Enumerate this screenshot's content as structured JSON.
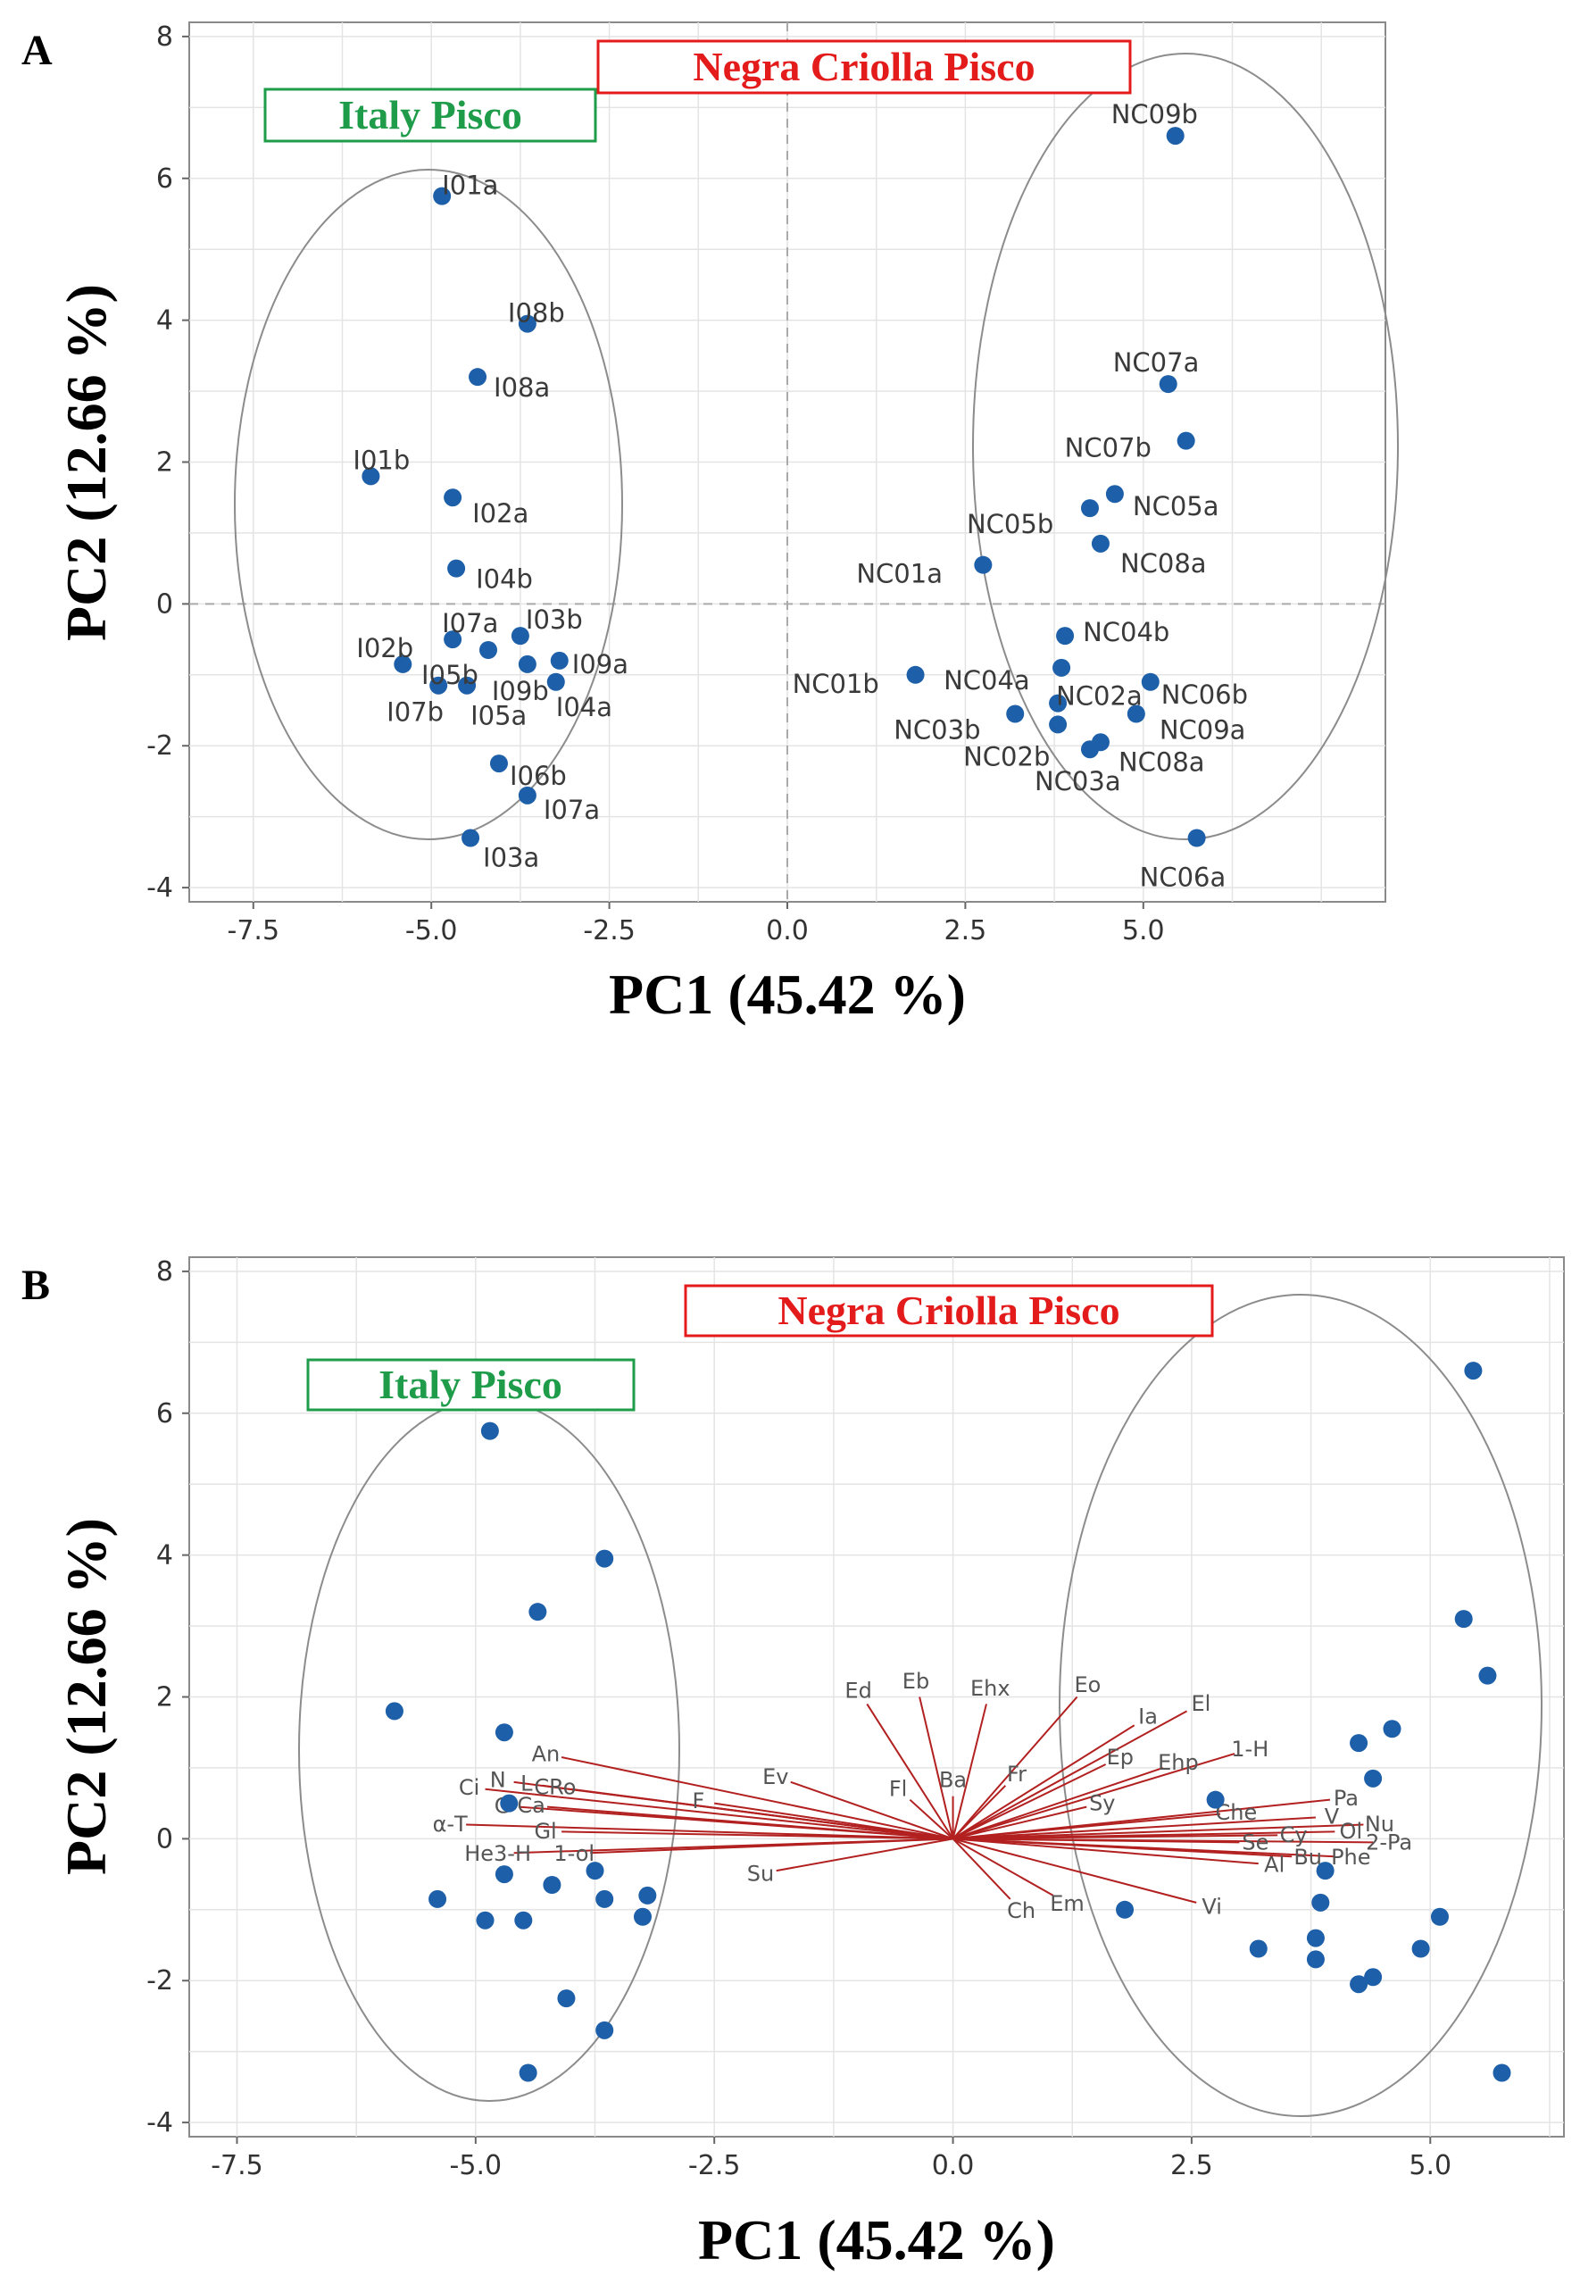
{
  "colors": {
    "point": "#1d5fa8",
    "loading": "#b22020",
    "italy": "#1e9c4a",
    "negra": "#e31b1b",
    "grid": "#e4e4e4",
    "ellipse": "#8c8c8c"
  },
  "chart_data": [
    {
      "panel": "A",
      "type": "scatter",
      "xlabel": "PC1 (45.42 %)",
      "ylabel": "PC2 (12.66 %)",
      "xlim": [
        -8.4,
        8.4
      ],
      "ylim": [
        -4.2,
        8.2
      ],
      "xticks": [
        -7.5,
        -5.0,
        -2.5,
        0.0,
        2.5,
        5.0
      ],
      "yticks": [
        -4,
        -2,
        0,
        2,
        4,
        6,
        8
      ],
      "xtick_labels": [
        "-7.5",
        "-5.0",
        "-2.5",
        "0.0",
        "2.5",
        "5.0"
      ],
      "ytick_labels": [
        "-4",
        "-2",
        "0",
        "2",
        "4",
        "6",
        "8"
      ],
      "groups": [
        {
          "label": "Italy Pisco",
          "color": "italy"
        },
        {
          "label": "Negra Criolla Pisco",
          "color": "negra"
        }
      ],
      "points": [
        {
          "label": "I01a",
          "x": -4.85,
          "y": 5.75
        },
        {
          "label": "I08b",
          "x": -3.65,
          "y": 3.95
        },
        {
          "label": "I08a",
          "x": -4.35,
          "y": 3.2
        },
        {
          "label": "I01b",
          "x": -5.85,
          "y": 1.8
        },
        {
          "label": "I02a",
          "x": -4.7,
          "y": 1.5
        },
        {
          "label": "I04b",
          "x": -4.65,
          "y": 0.5
        },
        {
          "label": "I02b",
          "x": -5.4,
          "y": -0.85
        },
        {
          "label": "I07a",
          "x": -4.7,
          "y": -0.5
        },
        {
          "label": "I03b",
          "x": -3.75,
          "y": -0.45
        },
        {
          "label": "I05b",
          "x": -4.2,
          "y": -0.65
        },
        {
          "label": "I09a",
          "x": -3.2,
          "y": -0.8
        },
        {
          "label": "I09b",
          "x": -3.65,
          "y": -0.85
        },
        {
          "label": "I07b",
          "x": -4.9,
          "y": -1.15
        },
        {
          "label": "I05a",
          "x": -4.5,
          "y": -1.15
        },
        {
          "label": "I04a",
          "x": -3.25,
          "y": -1.1
        },
        {
          "label": "I06b",
          "x": -4.05,
          "y": -2.25
        },
        {
          "label": "I07a",
          "x": -3.65,
          "y": -2.7
        },
        {
          "label": "I03a",
          "x": -4.45,
          "y": -3.3
        },
        {
          "label": "NC09b",
          "x": 5.45,
          "y": 6.6
        },
        {
          "label": "NC07a",
          "x": 5.35,
          "y": 3.1
        },
        {
          "label": "NC07b",
          "x": 5.6,
          "y": 2.3
        },
        {
          "label": "NC05a",
          "x": 4.6,
          "y": 1.55
        },
        {
          "label": "NC05b",
          "x": 4.25,
          "y": 1.35
        },
        {
          "label": "NC08a",
          "x": 4.4,
          "y": 0.85
        },
        {
          "label": "NC01a",
          "x": 2.75,
          "y": 0.55
        },
        {
          "label": "NC04b",
          "x": 3.9,
          "y": -0.45
        },
        {
          "label": "NC01b",
          "x": 1.8,
          "y": -1.0
        },
        {
          "label": "NC04a",
          "x": 3.85,
          "y": -0.9
        },
        {
          "label": "NC02a",
          "x": 3.8,
          "y": -1.4
        },
        {
          "label": "NC06b",
          "x": 5.1,
          "y": -1.1
        },
        {
          "label": "NC03b",
          "x": 3.2,
          "y": -1.55
        },
        {
          "label": "NC02b",
          "x": 3.8,
          "y": -1.7
        },
        {
          "label": "NC09a",
          "x": 4.9,
          "y": -1.55
        },
        {
          "label": "NC08a",
          "x": 4.4,
          "y": -1.95
        },
        {
          "label": "NC03a",
          "x": 4.25,
          "y": -2.05
        },
        {
          "label": "NC06a",
          "x": 5.75,
          "y": -3.3
        }
      ]
    },
    {
      "panel": "B",
      "type": "scatter",
      "subtype": "biplot",
      "xlabel": "PC1 (45.42 %)",
      "ylabel": "PC2 (12.66 %)",
      "xlim": [
        -8.0,
        6.4
      ],
      "ylim": [
        -4.2,
        8.2
      ],
      "xticks": [
        -7.5,
        -5.0,
        -2.5,
        0.0,
        2.5,
        5.0
      ],
      "yticks": [
        -4,
        -2,
        0,
        2,
        4,
        6,
        8
      ],
      "xtick_labels": [
        "-7.5",
        "-5.0",
        "-2.5",
        "0.0",
        "2.5",
        "5.0"
      ],
      "ytick_labels": [
        "-4",
        "-2",
        "0",
        "2",
        "4",
        "6",
        "8"
      ],
      "groups": [
        {
          "label": "Italy Pisco",
          "color": "italy"
        },
        {
          "label": "Negra Criolla Pisco",
          "color": "negra"
        }
      ],
      "points": [
        {
          "x": -4.85,
          "y": 5.75
        },
        {
          "x": -3.65,
          "y": 3.95
        },
        {
          "x": -4.35,
          "y": 3.2
        },
        {
          "x": -5.85,
          "y": 1.8
        },
        {
          "x": -4.7,
          "y": 1.5
        },
        {
          "x": -4.65,
          "y": 0.5
        },
        {
          "x": -5.4,
          "y": -0.85
        },
        {
          "x": -4.7,
          "y": -0.5
        },
        {
          "x": -3.75,
          "y": -0.45
        },
        {
          "x": -4.2,
          "y": -0.65
        },
        {
          "x": -3.2,
          "y": -0.8
        },
        {
          "x": -3.65,
          "y": -0.85
        },
        {
          "x": -4.9,
          "y": -1.15
        },
        {
          "x": -4.5,
          "y": -1.15
        },
        {
          "x": -3.25,
          "y": -1.1
        },
        {
          "x": -4.05,
          "y": -2.25
        },
        {
          "x": -3.65,
          "y": -2.7
        },
        {
          "x": -4.45,
          "y": -3.3
        },
        {
          "x": 5.45,
          "y": 6.6
        },
        {
          "x": 5.35,
          "y": 3.1
        },
        {
          "x": 5.6,
          "y": 2.3
        },
        {
          "x": 4.6,
          "y": 1.55
        },
        {
          "x": 4.25,
          "y": 1.35
        },
        {
          "x": 4.4,
          "y": 0.85
        },
        {
          "x": 2.75,
          "y": 0.55
        },
        {
          "x": 3.9,
          "y": -0.45
        },
        {
          "x": 1.8,
          "y": -1.0
        },
        {
          "x": 3.85,
          "y": -0.9
        },
        {
          "x": 3.8,
          "y": -1.4
        },
        {
          "x": 5.1,
          "y": -1.1
        },
        {
          "x": 3.2,
          "y": -1.55
        },
        {
          "x": 3.8,
          "y": -1.7
        },
        {
          "x": 4.9,
          "y": -1.55
        },
        {
          "x": 4.4,
          "y": -1.95
        },
        {
          "x": 4.25,
          "y": -2.05
        },
        {
          "x": 5.75,
          "y": -3.3
        }
      ],
      "loadings": [
        {
          "label": "Ed",
          "x": -0.9,
          "y": 1.9
        },
        {
          "label": "Eb",
          "x": -0.35,
          "y": 2.0
        },
        {
          "label": "Ehx",
          "x": 0.35,
          "y": 1.9
        },
        {
          "label": "Eo",
          "x": 1.3,
          "y": 2.0
        },
        {
          "label": "Ia",
          "x": 1.9,
          "y": 1.6
        },
        {
          "label": "El",
          "x": 2.45,
          "y": 1.8
        },
        {
          "label": "1-H",
          "x": 2.95,
          "y": 1.2
        },
        {
          "label": "Ep",
          "x": 1.6,
          "y": 1.05
        },
        {
          "label": "Ehp",
          "x": 2.2,
          "y": 1.0
        },
        {
          "label": "Fr",
          "x": 0.55,
          "y": 0.75
        },
        {
          "label": "Sy",
          "x": 1.4,
          "y": 0.45
        },
        {
          "label": "Ba",
          "x": 0.0,
          "y": 0.6
        },
        {
          "label": "Fl",
          "x": -0.45,
          "y": 0.55
        },
        {
          "label": "Ev",
          "x": -1.7,
          "y": 0.8
        },
        {
          "label": "F",
          "x": -2.5,
          "y": 0.5
        },
        {
          "label": "Su",
          "x": -1.85,
          "y": -0.45
        },
        {
          "label": "Ch",
          "x": 0.6,
          "y": -0.85
        },
        {
          "label": "Em",
          "x": 1.05,
          "y": -0.8
        },
        {
          "label": "Vi",
          "x": 2.55,
          "y": -0.9
        },
        {
          "label": "Pa",
          "x": 3.95,
          "y": 0.55
        },
        {
          "label": "Che",
          "x": 2.8,
          "y": 0.35
        },
        {
          "label": "V",
          "x": 3.8,
          "y": 0.3
        },
        {
          "label": "Nu",
          "x": 4.3,
          "y": 0.2
        },
        {
          "label": "Ol",
          "x": 4.0,
          "y": 0.1
        },
        {
          "label": "Cy",
          "x": 3.4,
          "y": 0.05
        },
        {
          "label": "2-Pa",
          "x": 4.4,
          "y": -0.05
        },
        {
          "label": "Se",
          "x": 3.0,
          "y": -0.05
        },
        {
          "label": "Bu",
          "x": 3.55,
          "y": -0.25
        },
        {
          "label": "Phe",
          "x": 4.0,
          "y": -0.25
        },
        {
          "label": "Al",
          "x": 3.2,
          "y": -0.35
        },
        {
          "label": "An",
          "x": -4.1,
          "y": 1.15
        },
        {
          "label": "L",
          "x": -4.3,
          "y": 0.75
        },
        {
          "label": "CRo",
          "x": -4.0,
          "y": 0.7
        },
        {
          "label": "Ci",
          "x": -4.9,
          "y": 0.7
        },
        {
          "label": "N",
          "x": -4.6,
          "y": 0.8
        },
        {
          "label": "G",
          "x": -4.55,
          "y": 0.45
        },
        {
          "label": "Ca",
          "x": -4.25,
          "y": 0.45
        },
        {
          "label": "α-T",
          "x": -5.1,
          "y": 0.2
        },
        {
          "label": "Gl",
          "x": -4.1,
          "y": 0.1
        },
        {
          "label": "He3-H",
          "x": -4.6,
          "y": -0.2
        },
        {
          "label": "1-ol",
          "x": -3.8,
          "y": -0.2
        }
      ]
    }
  ]
}
